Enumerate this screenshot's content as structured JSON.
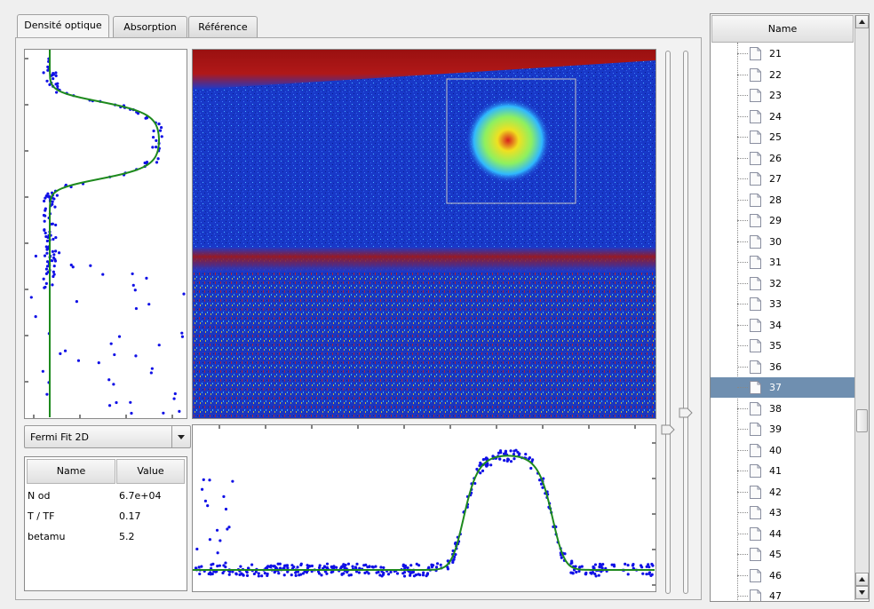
{
  "tabs": [
    {
      "label": "Densité optique",
      "active": true
    },
    {
      "label": "Absorption",
      "active": false
    },
    {
      "label": "Référence",
      "active": false
    }
  ],
  "fit": {
    "dropdown_value": "Fermi Fit 2D",
    "table": {
      "headers": [
        "Name",
        "Value"
      ],
      "rows": [
        {
          "name": "N od",
          "value": "6.7e+04"
        },
        {
          "name": "T / TF",
          "value": "0.17"
        },
        {
          "name": "betamu",
          "value": "5.2"
        }
      ]
    }
  },
  "tree": {
    "header": "Name",
    "items": [
      "21",
      "22",
      "23",
      "24",
      "25",
      "26",
      "27",
      "28",
      "29",
      "30",
      "31",
      "32",
      "33",
      "34",
      "35",
      "36",
      "37",
      "38",
      "39",
      "40",
      "41",
      "42",
      "43",
      "44",
      "45",
      "46",
      "47"
    ],
    "selected": "37",
    "scroll_fraction": 0.73
  },
  "colors": {
    "fit_curve": "#1e8a1e",
    "data_points": "#1010e6",
    "selection": "#6f8fb0",
    "image_bg": "#1a3ad0"
  },
  "icons": {
    "dropdown": "chevron-down-icon",
    "tree_item": "document-icon",
    "scroll_up": "arrow-up-icon",
    "scroll_down": "arrow-down-icon"
  }
}
